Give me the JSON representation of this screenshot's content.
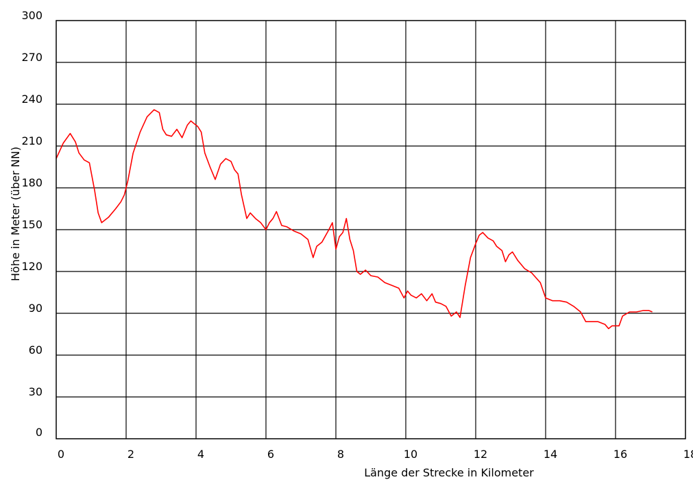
{
  "chart_data": {
    "type": "line",
    "title": "",
    "xlabel": "Länge der Strecke in Kilometer",
    "ylabel": "Höhe in Meter (über NN)",
    "xlim": [
      0,
      18
    ],
    "ylim": [
      0,
      300
    ],
    "xticks": [
      0,
      2,
      4,
      6,
      8,
      10,
      12,
      14,
      16,
      18
    ],
    "yticks": [
      0,
      30,
      60,
      90,
      120,
      150,
      180,
      210,
      240,
      270,
      300
    ],
    "x_grid_step": 2,
    "y_grid_step": 30,
    "grid": true,
    "line_color": "#ff0000",
    "series": [
      {
        "x": [
          0,
          0.2,
          0.4,
          0.55,
          0.65,
          0.8,
          0.95,
          1.1,
          1.2,
          1.3,
          1.5,
          1.7,
          1.85,
          1.95,
          2.05,
          2.2,
          2.4,
          2.6,
          2.8,
          2.95,
          3.05,
          3.15,
          3.3,
          3.45,
          3.6,
          3.75,
          3.85,
          3.95,
          4.05,
          4.15,
          4.25,
          4.4,
          4.55,
          4.7,
          4.85,
          5.0,
          5.1,
          5.2,
          5.3,
          5.45,
          5.55,
          5.7,
          5.85,
          6.0,
          6.1,
          6.2,
          6.3,
          6.45,
          6.6,
          6.8,
          7.0,
          7.2,
          7.35,
          7.45,
          7.6,
          7.8,
          7.9,
          8.0,
          8.1,
          8.2,
          8.3,
          8.4,
          8.5,
          8.6,
          8.7,
          8.85,
          9.0,
          9.2,
          9.4,
          9.6,
          9.8,
          9.95,
          10.05,
          10.15,
          10.3,
          10.45,
          10.6,
          10.75,
          10.85,
          11.0,
          11.15,
          11.3,
          11.45,
          11.55,
          11.7,
          11.85,
          12.0,
          12.1,
          12.2,
          12.35,
          12.5,
          12.6,
          12.75,
          12.85,
          12.95,
          13.05,
          13.2,
          13.4,
          13.6,
          13.85,
          14.0,
          14.2,
          14.4,
          14.6,
          14.8,
          15.0,
          15.15,
          15.3,
          15.5,
          15.7,
          15.8,
          15.9,
          16.1,
          16.2,
          16.4,
          16.6,
          16.8,
          16.95,
          17.05
        ],
        "y": [
          201,
          212,
          219,
          213,
          205,
          200,
          198,
          178,
          162,
          155,
          159,
          165,
          170,
          175,
          185,
          205,
          220,
          231,
          236,
          234,
          222,
          218,
          217,
          222,
          216,
          225,
          228,
          226,
          224,
          220,
          205,
          195,
          186,
          197,
          201,
          199,
          193,
          190,
          175,
          158,
          162,
          158,
          155,
          150,
          155,
          158,
          163,
          153,
          152,
          149,
          147,
          143,
          130,
          138,
          141,
          150,
          155,
          136,
          145,
          148,
          158,
          143,
          135,
          120,
          118,
          121,
          117,
          116,
          112,
          110,
          108,
          101,
          106,
          103,
          101,
          104,
          99,
          104,
          98,
          97,
          95,
          88,
          91,
          87,
          110,
          130,
          140,
          146,
          148,
          144,
          142,
          138,
          135,
          127,
          132,
          134,
          128,
          122,
          119,
          112,
          101,
          99,
          99,
          98,
          95,
          91,
          84,
          84,
          84,
          82,
          79,
          81,
          81,
          88,
          91,
          91,
          92,
          92,
          91
        ]
      }
    ]
  }
}
